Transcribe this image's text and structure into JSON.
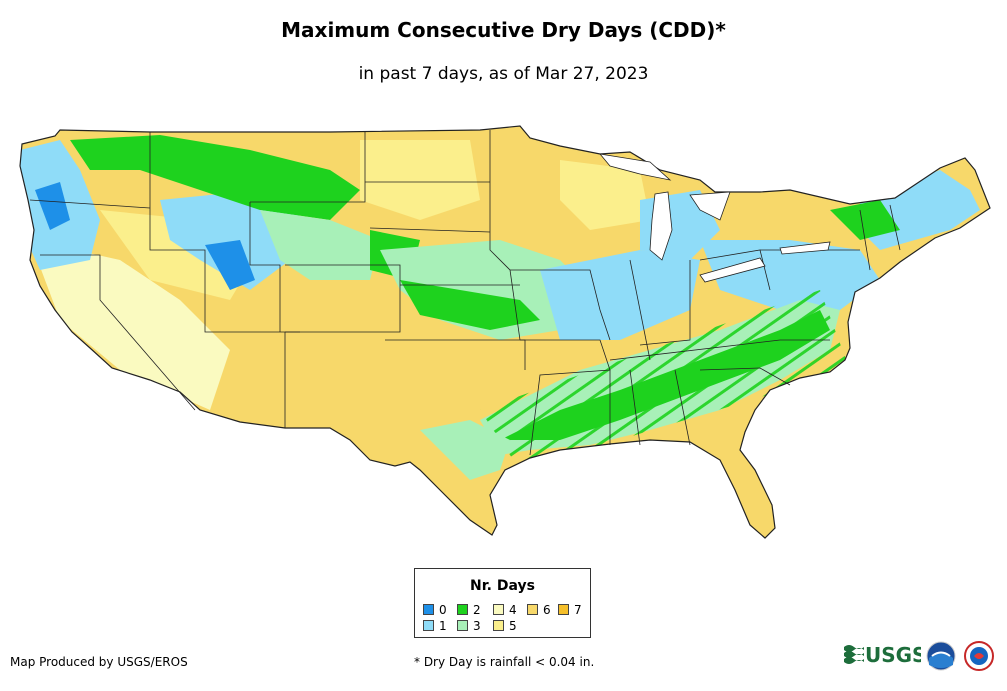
{
  "title": "Maximum Consecutive Dry Days (CDD)*",
  "subtitle": "in past 7 days, as of Mar 27, 2023",
  "legend": {
    "title": "Nr. Days",
    "items": [
      {
        "label": "0",
        "color": "#1e90e8"
      },
      {
        "label": "1",
        "color": "#8fdcf8"
      },
      {
        "label": "2",
        "color": "#1ed21e"
      },
      {
        "label": "3",
        "color": "#a8f0b8"
      },
      {
        "label": "4",
        "color": "#fafac0"
      },
      {
        "label": "5",
        "color": "#fbef8c"
      },
      {
        "label": "6",
        "color": "#f7d86a"
      },
      {
        "label": "7",
        "color": "#f5bf2a"
      }
    ]
  },
  "credit": "Map Produced by USGS/EROS",
  "footnote": "* Dry Day is rainfall < 0.04 in.",
  "logos": {
    "usgs": "USGS",
    "noaa": "noaa-logo",
    "nws": "nws-logo"
  }
}
